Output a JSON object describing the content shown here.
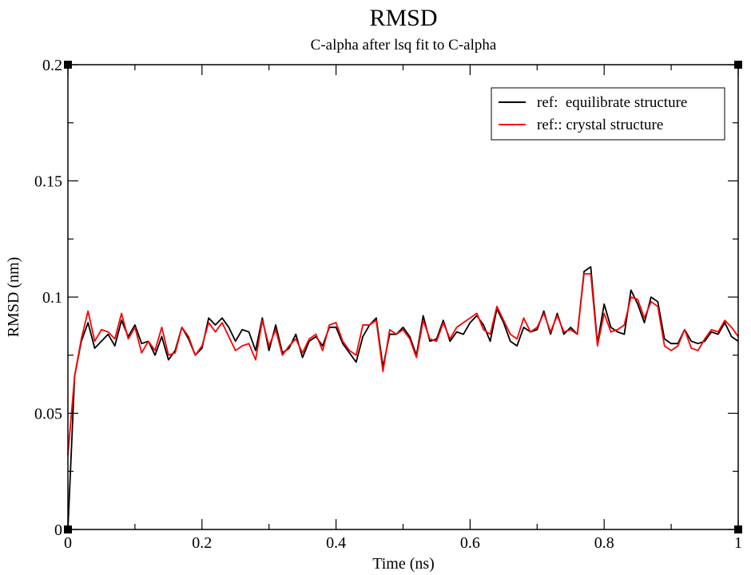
{
  "chart_data": {
    "type": "line",
    "title": "RMSD",
    "subtitle": "C-alpha after lsq fit to C-alpha",
    "xlabel": "Time (ns)",
    "ylabel": "RMSD (nm)",
    "xlim": [
      0,
      1
    ],
    "ylim": [
      0,
      0.2
    ],
    "x_ticks": [
      0,
      0.2,
      0.4,
      0.6,
      0.8,
      1
    ],
    "x_tick_labels": [
      "0",
      "0.2",
      "0.4",
      "0.6",
      "0.8",
      "1"
    ],
    "y_ticks": [
      0,
      0.05,
      0.1,
      0.15,
      0.2
    ],
    "y_tick_labels": [
      "0",
      "0.05",
      "0.1",
      "0.15",
      "0.2"
    ],
    "grid": false,
    "legend_position": "top-right",
    "x": [
      0,
      0.01,
      0.02,
      0.03,
      0.04,
      0.05,
      0.06,
      0.07,
      0.08,
      0.09,
      0.1,
      0.11,
      0.12,
      0.13,
      0.14,
      0.15,
      0.16,
      0.17,
      0.18,
      0.19,
      0.2,
      0.21,
      0.22,
      0.23,
      0.24,
      0.25,
      0.26,
      0.27,
      0.28,
      0.29,
      0.3,
      0.31,
      0.32,
      0.33,
      0.34,
      0.35,
      0.36,
      0.37,
      0.38,
      0.39,
      0.4,
      0.41,
      0.42,
      0.43,
      0.44,
      0.45,
      0.46,
      0.47,
      0.48,
      0.49,
      0.5,
      0.51,
      0.52,
      0.53,
      0.54,
      0.55,
      0.56,
      0.57,
      0.58,
      0.59,
      0.6,
      0.61,
      0.62,
      0.63,
      0.64,
      0.65,
      0.66,
      0.67,
      0.68,
      0.69,
      0.7,
      0.71,
      0.72,
      0.73,
      0.74,
      0.75,
      0.76,
      0.77,
      0.78,
      0.79,
      0.8,
      0.81,
      0.82,
      0.83,
      0.84,
      0.85,
      0.86,
      0.87,
      0.88,
      0.89,
      0.9,
      0.91,
      0.92,
      0.93,
      0.94,
      0.95,
      0.96,
      0.97,
      0.98,
      0.99,
      1.0
    ],
    "series": [
      {
        "name": "ref:  equilibrate structure",
        "color": "#000000",
        "values": [
          0,
          0.066,
          0.081,
          0.089,
          0.078,
          0.081,
          0.084,
          0.079,
          0.09,
          0.083,
          0.088,
          0.08,
          0.081,
          0.075,
          0.083,
          0.073,
          0.077,
          0.087,
          0.082,
          0.075,
          0.078,
          0.091,
          0.088,
          0.091,
          0.087,
          0.081,
          0.086,
          0.085,
          0.077,
          0.091,
          0.077,
          0.088,
          0.076,
          0.078,
          0.084,
          0.074,
          0.081,
          0.083,
          0.079,
          0.087,
          0.087,
          0.08,
          0.076,
          0.072,
          0.083,
          0.088,
          0.091,
          0.07,
          0.084,
          0.084,
          0.087,
          0.083,
          0.075,
          0.092,
          0.081,
          0.082,
          0.09,
          0.081,
          0.085,
          0.084,
          0.089,
          0.092,
          0.088,
          0.081,
          0.095,
          0.089,
          0.081,
          0.079,
          0.087,
          0.085,
          0.086,
          0.094,
          0.084,
          0.093,
          0.084,
          0.087,
          0.084,
          0.111,
          0.113,
          0.08,
          0.097,
          0.087,
          0.085,
          0.084,
          0.103,
          0.097,
          0.089,
          0.1,
          0.098,
          0.082,
          0.08,
          0.08,
          0.086,
          0.081,
          0.08,
          0.081,
          0.085,
          0.084,
          0.089,
          0.083,
          0.081
        ]
      },
      {
        "name": "ref:: crystal structure",
        "color": "#ff0000",
        "values": [
          0.032,
          0.066,
          0.082,
          0.094,
          0.081,
          0.086,
          0.085,
          0.082,
          0.093,
          0.082,
          0.087,
          0.076,
          0.081,
          0.077,
          0.087,
          0.075,
          0.076,
          0.087,
          0.083,
          0.075,
          0.079,
          0.089,
          0.085,
          0.089,
          0.083,
          0.077,
          0.079,
          0.08,
          0.073,
          0.09,
          0.079,
          0.086,
          0.075,
          0.079,
          0.082,
          0.076,
          0.082,
          0.084,
          0.077,
          0.088,
          0.089,
          0.081,
          0.077,
          0.075,
          0.088,
          0.088,
          0.09,
          0.068,
          0.086,
          0.084,
          0.086,
          0.082,
          0.074,
          0.09,
          0.082,
          0.081,
          0.089,
          0.082,
          0.087,
          0.089,
          0.091,
          0.093,
          0.086,
          0.084,
          0.096,
          0.09,
          0.084,
          0.082,
          0.091,
          0.085,
          0.087,
          0.093,
          0.085,
          0.092,
          0.085,
          0.086,
          0.084,
          0.11,
          0.11,
          0.079,
          0.093,
          0.085,
          0.086,
          0.088,
          0.1,
          0.099,
          0.091,
          0.098,
          0.096,
          0.079,
          0.077,
          0.079,
          0.086,
          0.078,
          0.077,
          0.082,
          0.086,
          0.085,
          0.09,
          0.087,
          0.083
        ]
      }
    ]
  }
}
